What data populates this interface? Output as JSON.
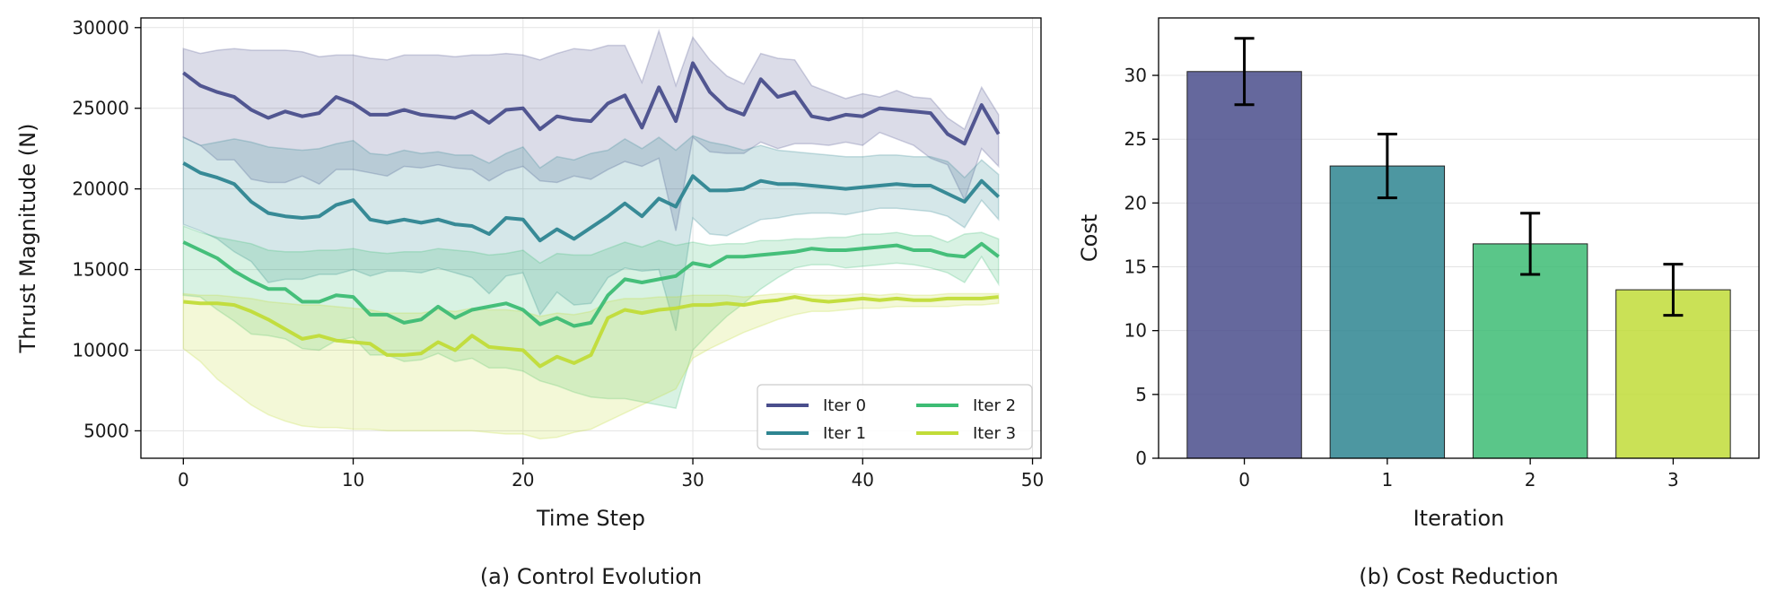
{
  "chart_data": [
    {
      "type": "line",
      "caption": "(a) Control Evolution",
      "xlabel": "Time Step",
      "ylabel": "Thrust Magnitude (N)",
      "xlim": [
        -2.5,
        50.5
      ],
      "ylim": [
        3300,
        30600
      ],
      "xticks": [
        0,
        10,
        20,
        30,
        40,
        50
      ],
      "yticks": [
        5000,
        10000,
        15000,
        20000,
        25000,
        30000
      ],
      "grid": true,
      "legend": {
        "position": "lower-right",
        "columns": 2
      },
      "x": [
        0,
        1,
        2,
        3,
        4,
        5,
        6,
        7,
        8,
        9,
        10,
        11,
        12,
        13,
        14,
        15,
        16,
        17,
        18,
        19,
        20,
        21,
        22,
        23,
        24,
        25,
        26,
        27,
        28,
        29,
        30,
        31,
        32,
        33,
        34,
        35,
        36,
        37,
        38,
        39,
        40,
        41,
        42,
        43,
        44,
        45,
        46,
        47,
        48
      ],
      "series": [
        {
          "name": "Iter 0",
          "color": "#4a4e8c",
          "values": [
            27200,
            26400,
            26000,
            25700,
            24900,
            24400,
            24800,
            24500,
            24700,
            25700,
            25300,
            24600,
            24600,
            24900,
            24600,
            24500,
            24400,
            24800,
            24100,
            24900,
            25000,
            23700,
            24500,
            24300,
            24200,
            25300,
            25800,
            23800,
            26300,
            24200,
            27800,
            26000,
            25000,
            24600,
            26800,
            25700,
            26000,
            24500,
            24300,
            24600,
            24500,
            25000,
            24900,
            24800,
            24700,
            23400,
            22800,
            25200,
            23400
          ],
          "upper": [
            28700,
            28400,
            28600,
            28700,
            28600,
            28600,
            28600,
            28500,
            28200,
            28300,
            28300,
            28100,
            28000,
            28300,
            28300,
            28300,
            28200,
            28300,
            28300,
            28400,
            28300,
            28000,
            28400,
            28700,
            28600,
            28900,
            28900,
            26600,
            29800,
            26400,
            29400,
            28000,
            27000,
            26500,
            28400,
            28100,
            28000,
            26400,
            26000,
            25600,
            25900,
            25700,
            26100,
            25700,
            25600,
            24400,
            23700,
            26300,
            24600
          ],
          "lower": [
            23200,
            22700,
            21800,
            21800,
            20600,
            20400,
            20400,
            20800,
            20300,
            21200,
            21200,
            21000,
            20800,
            21400,
            21300,
            21500,
            21300,
            21200,
            20500,
            21100,
            21400,
            20500,
            20400,
            20800,
            20600,
            21200,
            21700,
            21400,
            21900,
            17400,
            23200,
            22300,
            22200,
            22200,
            22900,
            22500,
            22800,
            22800,
            22700,
            22900,
            22700,
            23500,
            23100,
            22700,
            21900,
            21500,
            19300,
            22500,
            21400
          ]
        },
        {
          "name": "Iter 1",
          "color": "#2e8591",
          "values": [
            21600,
            21000,
            20700,
            20300,
            19200,
            18500,
            18300,
            18200,
            18300,
            19000,
            19300,
            18100,
            17900,
            18100,
            17900,
            18100,
            17800,
            17700,
            17200,
            18200,
            18100,
            16800,
            17500,
            16900,
            17600,
            18300,
            19100,
            18300,
            19400,
            18900,
            20800,
            19900,
            19900,
            20000,
            20500,
            20300,
            20300,
            20200,
            20100,
            20000,
            20100,
            20200,
            20300,
            20200,
            20200,
            19700,
            19200,
            20500,
            19500
          ],
          "upper": [
            23200,
            22700,
            22900,
            23100,
            22900,
            22600,
            22500,
            22400,
            22500,
            22800,
            23000,
            22200,
            22100,
            22400,
            22200,
            22300,
            22100,
            22100,
            21600,
            22200,
            22600,
            21300,
            22000,
            21800,
            22200,
            22400,
            23100,
            22500,
            23200,
            22400,
            23300,
            22900,
            22700,
            22400,
            22700,
            22400,
            22300,
            22200,
            22100,
            22000,
            22000,
            22100,
            22100,
            22000,
            22000,
            21700,
            20700,
            21800,
            20900
          ],
          "lower": [
            17800,
            17400,
            16900,
            16100,
            15500,
            14200,
            14400,
            14400,
            14700,
            14700,
            15000,
            14600,
            14900,
            14900,
            14800,
            15100,
            14800,
            14500,
            13500,
            14600,
            14800,
            12200,
            13600,
            12800,
            12900,
            14500,
            15100,
            14900,
            15000,
            11200,
            18200,
            17200,
            17100,
            17600,
            18100,
            18200,
            18400,
            18500,
            18500,
            18400,
            18600,
            18800,
            18800,
            18700,
            18600,
            18300,
            17600,
            19300,
            18100
          ]
        },
        {
          "name": "Iter 2",
          "color": "#3dbc74",
          "values": [
            16700,
            16200,
            15700,
            14900,
            14300,
            13800,
            13800,
            13000,
            13000,
            13400,
            13300,
            12200,
            12200,
            11700,
            11900,
            12700,
            12000,
            12500,
            12700,
            12900,
            12500,
            11600,
            12000,
            11500,
            11700,
            13400,
            14400,
            14200,
            14400,
            14600,
            15400,
            15200,
            15800,
            15800,
            15900,
            16000,
            16100,
            16300,
            16200,
            16200,
            16300,
            16400,
            16500,
            16200,
            16200,
            15900,
            15800,
            16600,
            15800
          ],
          "upper": [
            17700,
            17300,
            17000,
            16800,
            16600,
            16200,
            16100,
            16100,
            16200,
            16200,
            16300,
            16100,
            16000,
            16100,
            16100,
            16300,
            16200,
            16100,
            15900,
            16000,
            16200,
            15400,
            16000,
            15900,
            15900,
            16300,
            16700,
            16400,
            16800,
            16500,
            16700,
            16500,
            16600,
            16600,
            16800,
            16800,
            16900,
            16900,
            17000,
            17000,
            17200,
            17200,
            17300,
            17100,
            17100,
            16700,
            17200,
            17300,
            16900
          ],
          "lower": [
            13400,
            13300,
            12500,
            11800,
            11000,
            10900,
            10700,
            10100,
            10000,
            10600,
            10800,
            9700,
            9700,
            9300,
            9400,
            9800,
            9300,
            9500,
            8900,
            8900,
            8700,
            8100,
            7800,
            7400,
            7100,
            7000,
            7000,
            6800,
            6600,
            6400,
            10000,
            11100,
            12100,
            12900,
            13800,
            14500,
            15100,
            15300,
            15300,
            15100,
            15200,
            15300,
            15400,
            15300,
            15100,
            14800,
            14200,
            15800,
            14100
          ]
        },
        {
          "name": "Iter 3",
          "color": "#c1dc38",
          "values": [
            13000,
            12900,
            12900,
            12800,
            12400,
            11900,
            11300,
            10700,
            10900,
            10600,
            10500,
            10400,
            9700,
            9700,
            9800,
            10500,
            10000,
            10900,
            10200,
            10100,
            10000,
            9000,
            9600,
            9200,
            9700,
            12000,
            12500,
            12300,
            12500,
            12600,
            12800,
            12800,
            12900,
            12800,
            13000,
            13100,
            13300,
            13100,
            13000,
            13100,
            13200,
            13100,
            13200,
            13100,
            13100,
            13200,
            13200,
            13200,
            13300
          ],
          "upper": [
            13500,
            13400,
            13400,
            13300,
            13200,
            13000,
            12900,
            12800,
            12800,
            12700,
            12600,
            12500,
            12300,
            12300,
            12300,
            12500,
            12400,
            12600,
            12500,
            12500,
            12400,
            12100,
            12300,
            12200,
            12400,
            13000,
            13200,
            13200,
            13300,
            13300,
            13400,
            13400,
            13400,
            13300,
            13400,
            13500,
            13500,
            13400,
            13400,
            13400,
            13500,
            13400,
            13500,
            13400,
            13400,
            13500,
            13500,
            13500,
            13500
          ],
          "lower": [
            10100,
            9300,
            8200,
            7400,
            6600,
            6000,
            5600,
            5300,
            5200,
            5200,
            5100,
            5100,
            5000,
            5000,
            5000,
            5000,
            5000,
            5000,
            4900,
            4800,
            4800,
            4500,
            4600,
            4900,
            5100,
            5600,
            6100,
            6600,
            7100,
            7600,
            9500,
            10100,
            10600,
            11100,
            11500,
            11900,
            12200,
            12400,
            12400,
            12500,
            12600,
            12600,
            12700,
            12700,
            12700,
            12700,
            12800,
            12800,
            12900
          ]
        }
      ]
    },
    {
      "type": "bar",
      "caption": "(b) Cost Reduction",
      "xlabel": "Iteration",
      "ylabel": "Cost",
      "ylim": [
        0,
        34.5
      ],
      "yticks": [
        0,
        5,
        10,
        15,
        20,
        25,
        30
      ],
      "grid": true,
      "categories": [
        "0",
        "1",
        "2",
        "3"
      ],
      "values": [
        30.3,
        22.9,
        16.8,
        13.2
      ],
      "errors": [
        2.6,
        2.5,
        2.4,
        2.0
      ],
      "colors": [
        "#4a4e8c",
        "#2e8591",
        "#3dbc74",
        "#c1dc38"
      ]
    }
  ]
}
